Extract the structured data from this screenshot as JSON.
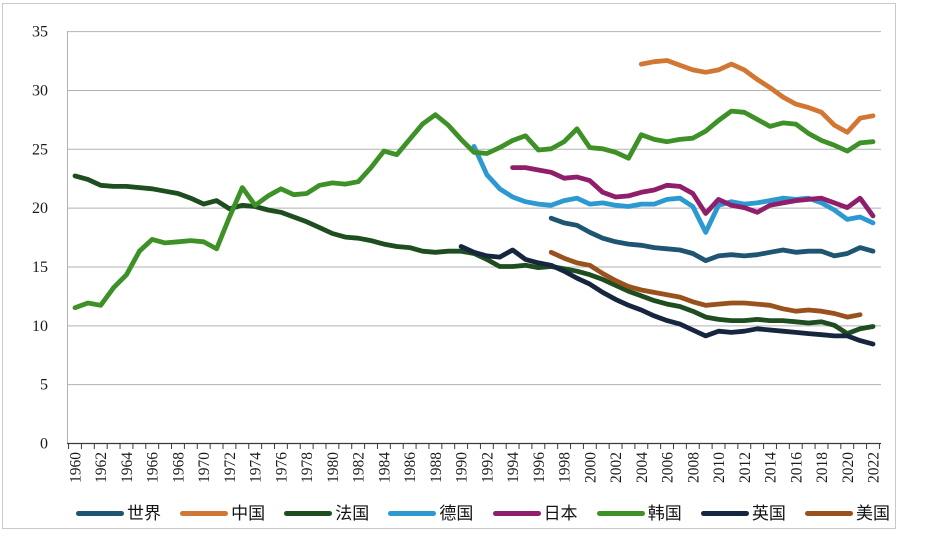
{
  "frame_color": "#c9c9c9",
  "chart_data": {
    "type": "line",
    "title": "",
    "xlabel": "",
    "ylabel": "",
    "ylim": [
      0,
      35
    ],
    "y_ticks": [
      0,
      5,
      10,
      15,
      20,
      25,
      30,
      35
    ],
    "x_range": [
      1960,
      2022
    ],
    "x_tick_label_step": 2,
    "x_tick_labels": [
      "1960",
      "1962",
      "1964",
      "1966",
      "1968",
      "1970",
      "1972",
      "1974",
      "1976",
      "1978",
      "1980",
      "1982",
      "1984",
      "1986",
      "1988",
      "1990",
      "1992",
      "1994",
      "1996",
      "1998",
      "2000",
      "2002",
      "2004",
      "2006",
      "2008",
      "2010",
      "2012",
      "2014",
      "2016",
      "2018",
      "2020",
      "2022"
    ],
    "grid": true,
    "legend_position": "bottom",
    "axis_color": "#3a3a3a",
    "grid_color": "#b2b2b2",
    "label_color": "#1a1a1a",
    "series": [
      {
        "key": "world",
        "name": "世界",
        "color": "#1E5570",
        "start_year": 1997,
        "values": [
          19.1,
          18.7,
          18.5,
          17.9,
          17.4,
          17.1,
          16.9,
          16.8,
          16.6,
          16.5,
          16.4,
          16.1,
          15.5,
          15.9,
          16.0,
          15.9,
          16.0,
          16.2,
          16.4,
          16.2,
          16.3,
          16.3,
          15.9,
          16.1,
          16.6,
          16.3
        ]
      },
      {
        "key": "china",
        "name": "中国",
        "color": "#D27733",
        "start_year": 2004,
        "values": [
          32.2,
          32.4,
          32.5,
          32.1,
          31.7,
          31.5,
          31.7,
          32.2,
          31.7,
          30.9,
          30.2,
          29.4,
          28.8,
          28.5,
          28.1,
          27.0,
          26.4,
          27.6,
          27.8
        ]
      },
      {
        "key": "france",
        "name": "法国",
        "color": "#1E4D1F",
        "start_year": 1960,
        "values": [
          22.7,
          22.4,
          21.9,
          21.8,
          21.8,
          21.7,
          21.6,
          21.4,
          21.2,
          20.8,
          20.3,
          20.6,
          19.9,
          20.2,
          20.1,
          19.8,
          19.6,
          19.2,
          18.8,
          18.3,
          17.8,
          17.5,
          17.4,
          17.2,
          16.9,
          16.7,
          16.6,
          16.3,
          16.2,
          16.3,
          16.3,
          16.1,
          15.6,
          15.0,
          15.0,
          15.1,
          14.9,
          15.0,
          14.8,
          14.6,
          14.3,
          13.9,
          13.4,
          12.9,
          12.5,
          12.1,
          11.8,
          11.6,
          11.2,
          10.7,
          10.5,
          10.4,
          10.4,
          10.5,
          10.4,
          10.4,
          10.3,
          10.2,
          10.3,
          10.0,
          9.3,
          9.7,
          9.9
        ]
      },
      {
        "key": "germany",
        "name": "德国",
        "color": "#2C99D1",
        "start_year": 1991,
        "values": [
          25.2,
          22.8,
          21.6,
          20.9,
          20.5,
          20.3,
          20.2,
          20.6,
          20.8,
          20.3,
          20.4,
          20.2,
          20.1,
          20.3,
          20.3,
          20.7,
          20.8,
          20.1,
          17.9,
          20.2,
          20.5,
          20.3,
          20.4,
          20.6,
          20.8,
          20.7,
          20.8,
          20.4,
          19.8,
          19.0,
          19.2,
          18.7
        ]
      },
      {
        "key": "japan",
        "name": "日本",
        "color": "#8F1E6B",
        "start_year": 1994,
        "values": [
          23.4,
          23.4,
          23.2,
          23.0,
          22.5,
          22.6,
          22.3,
          21.3,
          20.9,
          21.0,
          21.3,
          21.5,
          21.9,
          21.8,
          21.2,
          19.5,
          20.7,
          20.2,
          20.0,
          19.6,
          20.2,
          20.4,
          20.6,
          20.7,
          20.8,
          20.4,
          20.0,
          20.8,
          19.3
        ]
      },
      {
        "key": "korea",
        "name": "韩国",
        "color": "#3D9126",
        "start_year": 1960,
        "values": [
          11.5,
          11.9,
          11.7,
          13.2,
          14.3,
          16.3,
          17.3,
          17.0,
          17.1,
          17.2,
          17.1,
          16.5,
          19.2,
          21.7,
          20.2,
          21.0,
          21.6,
          21.1,
          21.2,
          21.9,
          22.1,
          22.0,
          22.2,
          23.4,
          24.8,
          24.5,
          25.8,
          27.1,
          27.9,
          27.0,
          25.8,
          24.7,
          24.6,
          25.1,
          25.7,
          26.1,
          24.9,
          25.0,
          25.6,
          26.7,
          25.1,
          25.0,
          24.7,
          24.2,
          26.2,
          25.8,
          25.6,
          25.8,
          25.9,
          26.5,
          27.4,
          28.2,
          28.1,
          27.5,
          26.9,
          27.2,
          27.1,
          26.3,
          25.7,
          25.3,
          24.8,
          25.5,
          25.6
        ]
      },
      {
        "key": "uk",
        "name": "英国",
        "color": "#16263F",
        "start_year": 1990,
        "values": [
          16.7,
          16.2,
          15.9,
          15.8,
          16.4,
          15.6,
          15.3,
          15.1,
          14.6,
          14.0,
          13.5,
          12.8,
          12.2,
          11.7,
          11.3,
          10.8,
          10.4,
          10.1,
          9.6,
          9.1,
          9.5,
          9.4,
          9.5,
          9.7,
          9.6,
          9.5,
          9.4,
          9.3,
          9.2,
          9.1,
          9.1,
          8.7,
          8.4
        ]
      },
      {
        "key": "usa",
        "name": "美国",
        "color": "#99521E",
        "start_year": 1997,
        "values": [
          16.2,
          15.7,
          15.3,
          15.1,
          14.4,
          13.8,
          13.3,
          13.0,
          12.8,
          12.6,
          12.4,
          12.0,
          11.7,
          11.8,
          11.9,
          11.9,
          11.8,
          11.7,
          11.4,
          11.2,
          11.3,
          11.2,
          11.0,
          10.7,
          10.9
        ]
      }
    ]
  }
}
